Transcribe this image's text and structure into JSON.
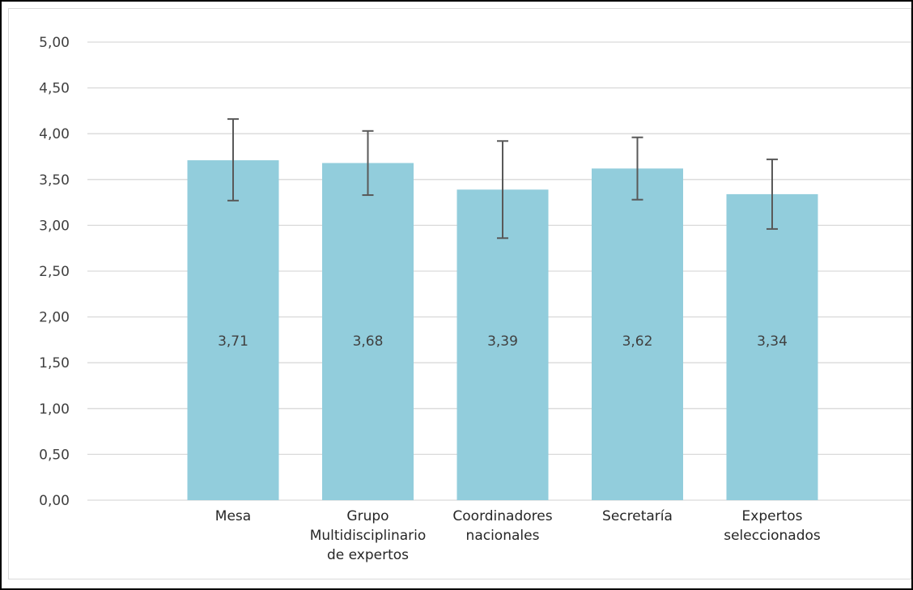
{
  "chart_data": {
    "type": "bar",
    "title": "",
    "xlabel": "",
    "ylabel": "",
    "categories": [
      [
        "Mesa"
      ],
      [
        "Grupo",
        "Multidisciplinario",
        "de expertos"
      ],
      [
        "Coordinadores",
        "nacionales"
      ],
      [
        "Secretaría"
      ],
      [
        "Expertos",
        "seleccionados"
      ]
    ],
    "values": [
      3.71,
      3.68,
      3.39,
      3.62,
      3.34
    ],
    "data_labels": [
      "3,71",
      "3,68",
      "3,39",
      "3,62",
      "3,34"
    ],
    "error_low": [
      3.27,
      3.33,
      2.86,
      3.28,
      2.96
    ],
    "error_high": [
      4.16,
      4.03,
      3.92,
      3.96,
      3.72
    ],
    "ylim": [
      0,
      5
    ],
    "yticks": [
      0,
      0.5,
      1,
      1.5,
      2,
      2.5,
      3,
      3.5,
      4,
      4.5,
      5
    ],
    "ytick_labels": [
      "0,00",
      "0,50",
      "1,00",
      "1,50",
      "2,00",
      "2,50",
      "3,00",
      "3,50",
      "4,00",
      "4,50",
      "5,00"
    ],
    "grid": true,
    "legend": "none",
    "colors": {
      "bar": "#92cddc",
      "grid": "#d9d9d9",
      "error_bar": "#595959"
    }
  }
}
